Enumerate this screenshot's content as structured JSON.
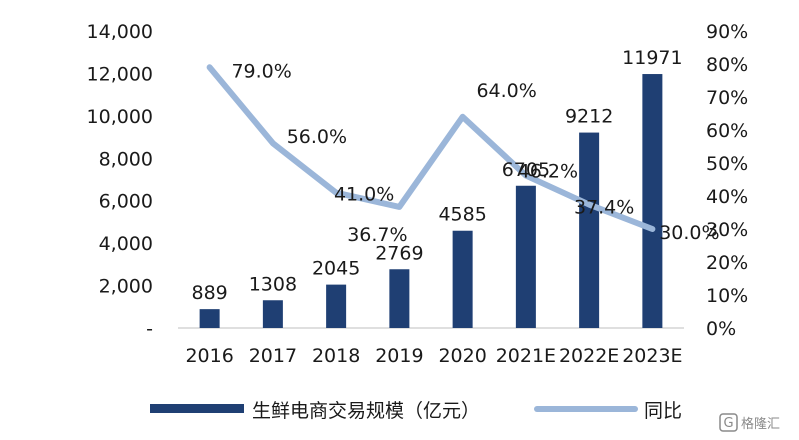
{
  "chart_data": {
    "type": "bar",
    "categories": [
      "2016",
      "2017",
      "2018",
      "2019",
      "2020",
      "2021E",
      "2022E",
      "2023E"
    ],
    "series": [
      {
        "name": "生鲜电商交易规模（亿元）",
        "type": "bar",
        "axis": "left",
        "values": [
          889,
          1308,
          2045,
          2769,
          4585,
          6705,
          9212,
          11971
        ],
        "labels": [
          "889",
          "1308",
          "2045",
          "2769",
          "4585",
          "6705",
          "9212",
          "11971"
        ],
        "color": "#1f3f73"
      },
      {
        "name": "同比",
        "type": "line",
        "axis": "right",
        "values": [
          79.0,
          56.0,
          41.0,
          36.7,
          64.0,
          46.2,
          37.4,
          30.0
        ],
        "labels": [
          "79.0%",
          "56.0%",
          "41.0%",
          "36.7%",
          "64.0%",
          "46.2%",
          "37.4%",
          "30.0%"
        ],
        "color": "#9bb6d9"
      }
    ],
    "y_left": {
      "ylim": [
        0,
        14000
      ],
      "ticks": [
        0,
        2000,
        4000,
        6000,
        8000,
        10000,
        12000,
        14000
      ],
      "tick_labels": [
        "-",
        "2,000",
        "4,000",
        "6,000",
        "8,000",
        "10,000",
        "12,000",
        "14,000"
      ]
    },
    "y_right": {
      "ylim": [
        0,
        90
      ],
      "ticks": [
        0,
        10,
        20,
        30,
        40,
        50,
        60,
        70,
        80,
        90
      ],
      "tick_labels": [
        "0%",
        "10%",
        "20%",
        "30%",
        "40%",
        "50%",
        "60%",
        "70%",
        "80%",
        "90%"
      ]
    },
    "legend_position": "bottom",
    "grid": false
  },
  "watermark": {
    "icon": "brand-logo-icon",
    "text": "格隆汇"
  }
}
